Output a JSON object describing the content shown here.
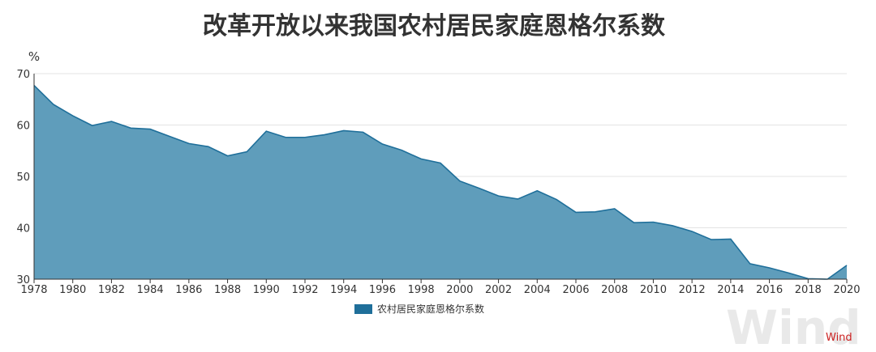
{
  "chart_data": {
    "type": "area",
    "title": "改革开放以来我国农村居民家庭恩格尔系数",
    "ylabel": "%",
    "ylim": [
      30,
      70
    ],
    "yticks": [
      30,
      40,
      50,
      60,
      70
    ],
    "xlim": [
      1978,
      2020
    ],
    "xticks": [
      "1978",
      "1980",
      "1982",
      "1984",
      "1986",
      "1988",
      "1990",
      "1992",
      "1994",
      "1996",
      "1998",
      "2000",
      "2002",
      "2004",
      "2006",
      "2008",
      "2010",
      "2012",
      "2014",
      "2016",
      "2018",
      "2020"
    ],
    "grid": true,
    "legend_position": "bottom-center",
    "series": [
      {
        "name": "农村居民家庭恩格尔系数",
        "x": [
          1978,
          1979,
          1980,
          1981,
          1982,
          1983,
          1984,
          1985,
          1986,
          1987,
          1988,
          1989,
          1990,
          1991,
          1992,
          1993,
          1994,
          1995,
          1996,
          1997,
          1998,
          1999,
          2000,
          2001,
          2002,
          2003,
          2004,
          2005,
          2006,
          2007,
          2008,
          2009,
          2010,
          2011,
          2012,
          2013,
          2014,
          2015,
          2016,
          2017,
          2018,
          2019,
          2020
        ],
        "values": [
          67.7,
          64.0,
          61.8,
          59.9,
          60.7,
          59.4,
          59.2,
          57.8,
          56.4,
          55.8,
          54.0,
          54.8,
          58.8,
          57.6,
          57.6,
          58.1,
          58.9,
          58.6,
          56.3,
          55.1,
          53.4,
          52.6,
          49.1,
          47.7,
          46.2,
          45.6,
          47.2,
          45.5,
          43.0,
          43.1,
          43.7,
          41.0,
          41.1,
          40.4,
          39.3,
          37.7,
          37.8,
          33.0,
          32.2,
          31.2,
          30.1,
          30.0,
          32.7
        ],
        "color": "#1f6f9a",
        "fill_color": "#5f9dbb"
      }
    ],
    "watermark": {
      "big": "Wind",
      "small": "Wind"
    }
  }
}
